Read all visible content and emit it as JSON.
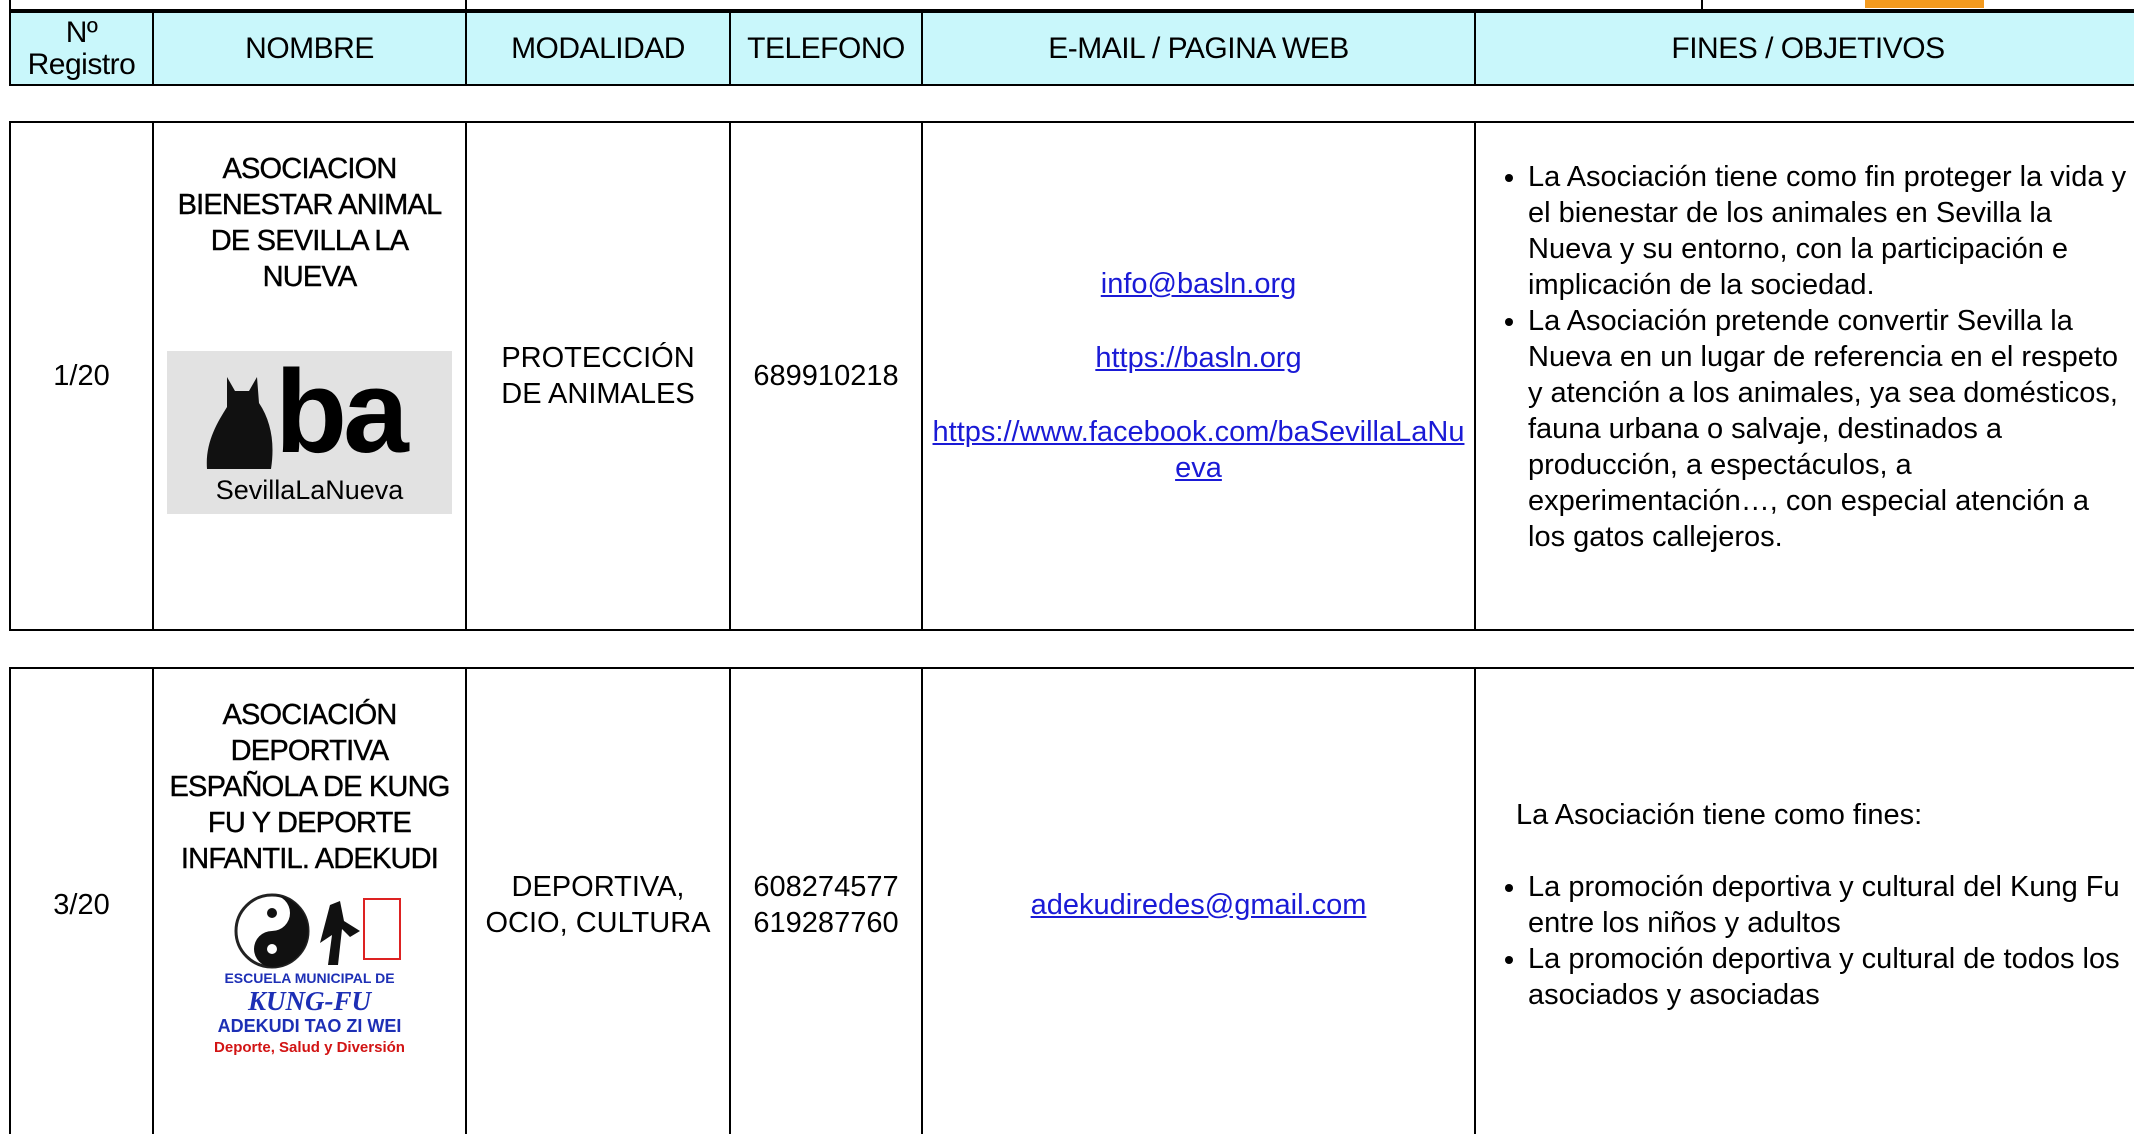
{
  "table": {
    "header": [
      "Nº Registro",
      "NOMBRE",
      "MODALIDAD",
      "TELEFONO",
      "E-MAIL / PAGINA WEB",
      "FINES / OBJETIVOS"
    ],
    "rows": [
      {
        "registro": "1/20",
        "nombre": "ASOCIACION BIENESTAR ANIMAL DE SEVILLA LA NUEVA",
        "logo": {
          "mark": "ba",
          "caption": "SevillaLaNueva"
        },
        "modalidad": "PROTECCIÓN DE ANIMALES",
        "telefonos": [
          "689910218"
        ],
        "contacto": [
          "info@basln.org",
          "https://basln.org",
          "https://www.facebook.com/baSevillaLaNueva"
        ],
        "fines": {
          "items": [
            "La Asociación tiene como fin proteger la vida y el bienestar de los animales en Sevilla la Nueva y su entorno, con la participación e implicación de la sociedad.",
            "La Asociación pretende convertir Sevilla la Nueva en un lugar de referencia en el respeto y atención a  los animales, ya sea domésticos, fauna urbana o salvaje, destinados a producción, a espectáculos, a experimentación…, con especial atención a los gatos callejeros."
          ]
        }
      },
      {
        "registro": "3/20",
        "nombre": "ASOCIACIÓN DEPORTIVA ESPAÑOLA DE KUNG FU Y DEPORTE INFANTIL. ADEKUDI",
        "logo": {
          "lines": [
            "ESCUELA MUNICIPAL DE",
            "KUNG-FU",
            "ADEKUDI TAO ZI WEI",
            "Deporte, Salud y Diversión"
          ]
        },
        "modalidad": "DEPORTIVA, OCIO, CULTURA",
        "telefonos": [
          "608274577",
          "619287760"
        ],
        "contacto": [
          "adekudiredes@gmail.com"
        ],
        "fines": {
          "intro": "La Asociación tiene como fines:",
          "items": [
            "La promoción deportiva y cultural del Kung Fu entre los niños y adultos",
            "La promoción deportiva y cultural de todos los asociados y asociadas"
          ]
        }
      }
    ]
  }
}
